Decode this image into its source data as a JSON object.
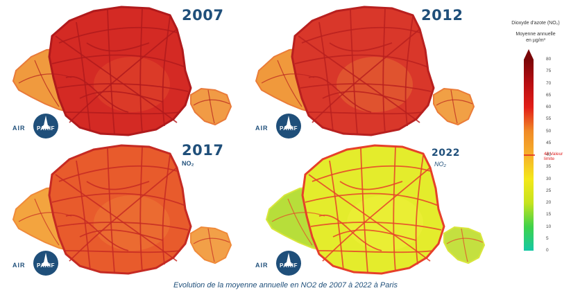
{
  "panels": [
    {
      "year": "2007",
      "pollutant_label": "",
      "colors": {
        "main": "#d42a24",
        "inner": "#e0462c",
        "edge": "#e87a3a",
        "west": "#f09a3e",
        "east": "#f19b45",
        "roads": "#b01a1c"
      }
    },
    {
      "year": "2012",
      "pollutant_label": "",
      "colors": {
        "main": "#d9372a",
        "inner": "#e46633",
        "edge": "#ea7c38",
        "west": "#f0993c",
        "east": "#f1a045",
        "roads": "#b8201f"
      }
    },
    {
      "year": "2017",
      "pollutant_label": "NO₂",
      "colors": {
        "main": "#e85b2c",
        "inner": "#ed7635",
        "edge": "#ef8a3a",
        "west": "#f3a43f",
        "east": "#f2a048",
        "roads": "#c52a23"
      }
    },
    {
      "year": "2022",
      "pollutant_label": "NO₂",
      "colors": {
        "main": "#e4ec2c",
        "inner": "#eef03a",
        "edge": "#d9e63c",
        "west": "#b7de3a",
        "east": "#c4e040",
        "roads": "#e6402a"
      }
    }
  ],
  "logo": {
    "text": "AIR",
    "disc_label": "PARIF",
    "icon": "eiffel-tower-icon"
  },
  "legend": {
    "title": "Dioxyde d'azote (NO₂)",
    "subtitle": "Moyenne annuelle",
    "unit": "en µg/m³",
    "ticks": [
      80,
      75,
      70,
      65,
      60,
      55,
      50,
      45,
      40,
      35,
      30,
      25,
      20,
      15,
      10,
      5,
      0
    ],
    "range": [
      0,
      80
    ],
    "limit_value": 40,
    "limit_label": "40 Valeur limite",
    "color_stops": [
      "#14c8a4",
      "#3fd24a",
      "#c6e31e",
      "#f4e81a",
      "#f6b02a",
      "#f08a26",
      "#e21e18",
      "#b80d12",
      "#7a0608"
    ]
  },
  "caption": "Evolution de la moyenne annuelle en NO2 de 2007 à 2022 à Paris"
}
